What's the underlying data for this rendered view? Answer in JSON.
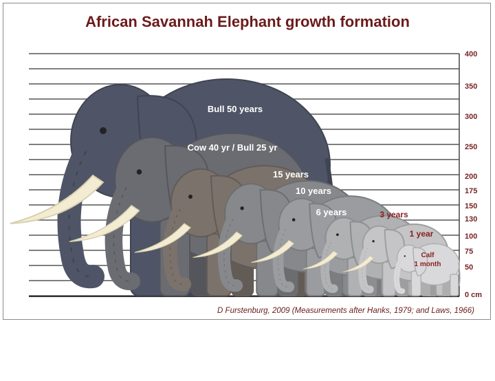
{
  "title": "African Savannah Elephant growth formation",
  "axis": {
    "ticks": [
      "400",
      "350",
      "300",
      "250",
      "200",
      "175",
      "150",
      "130",
      "100",
      "75",
      "50",
      "0 cm"
    ],
    "unit": "cm"
  },
  "elephants": [
    {
      "label": "Bull 50 years",
      "color": "#4f5567"
    },
    {
      "label": "Cow 40 yr / Bull 25 yr",
      "color": "#6a6c72"
    },
    {
      "label": "15 years",
      "color": "#7b726b"
    },
    {
      "label": "10 years",
      "color": "#87888b"
    },
    {
      "label": "6 years",
      "color": "#9a9c9f"
    },
    {
      "label": "3 years",
      "color": "#b0b1b3"
    },
    {
      "label": "1 year",
      "color": "#c5c5c7"
    },
    {
      "label": "Calf",
      "label2": "1 month",
      "color": "#d9d9db"
    }
  ],
  "tusk_color": "#f3ecd2",
  "caption": "D Furstenburg, 2009 (Measurements after Hanks, 1979; and Laws, 1966)"
}
